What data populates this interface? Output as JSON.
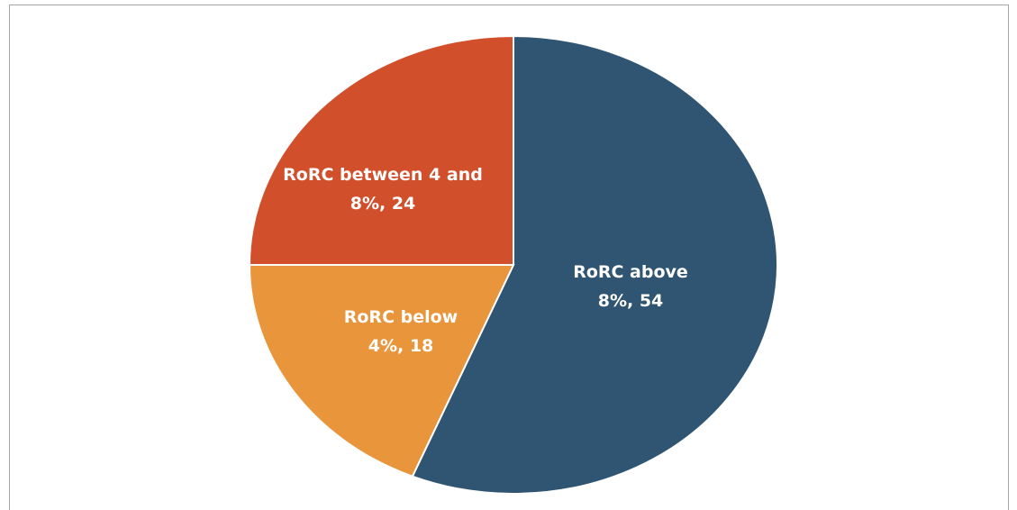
{
  "chart_data": {
    "type": "pie",
    "values": [
      54,
      18,
      24
    ],
    "value_labels": [
      "RoRC above 8%, 54",
      "RoRC below 4%, 18",
      "RoRC between 4 and 8%, 24"
    ],
    "colors": [
      "#2f5572",
      "#e9953b",
      "#d24f2b"
    ]
  }
}
